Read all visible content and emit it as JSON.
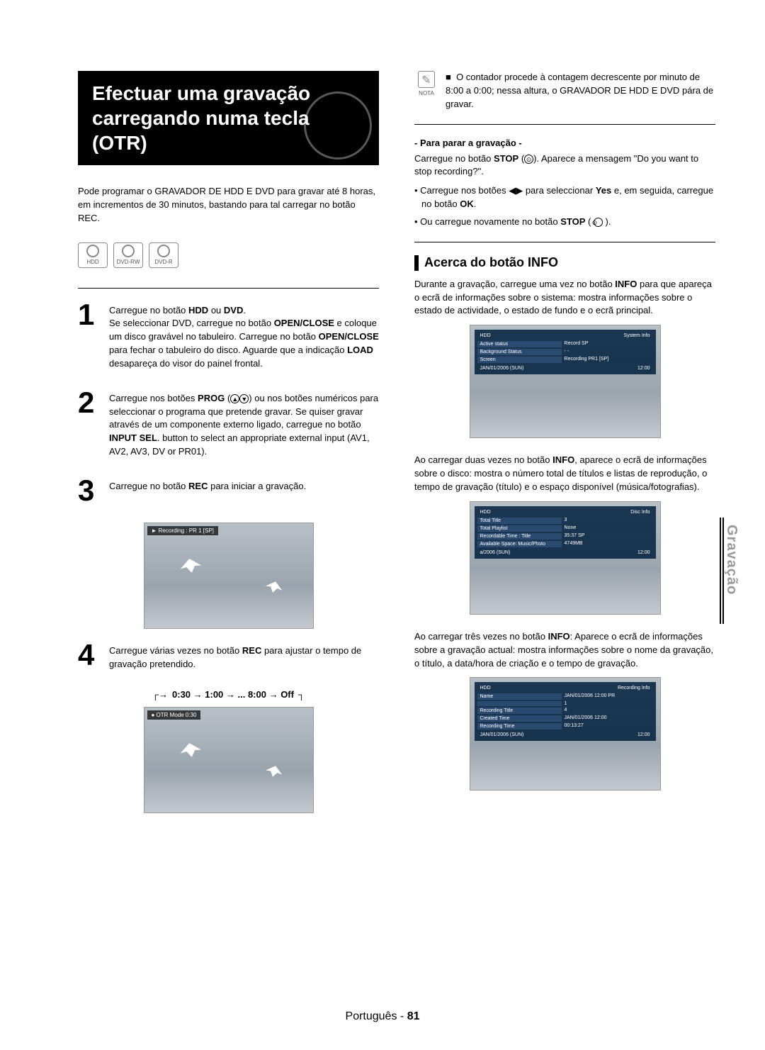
{
  "left": {
    "title_line1": "Efectuar uma gravação",
    "title_line2": "carregando numa tecla (OTR)",
    "intro": "Pode programar o GRAVADOR DE HDD E DVD para gravar até 8 horas, em incrementos de 30 minutos, bastando para tal carregar no botão REC.",
    "disc_labels": [
      "HDD",
      "DVD-RW",
      "DVD-R"
    ],
    "steps": {
      "s1": "Carregue no botão HDD ou DVD. Se seleccionar DVD, carregue no botão OPEN/CLOSE e coloque um disco gravável no tabuleiro. Carregue no botão OPEN/CLOSE para fechar o tabuleiro do disco. Aguarde que a indicação LOAD desapareça do visor do painel frontal.",
      "s2": "Carregue nos botões PROG (⊙⊙) ou nos botões numéricos para seleccionar o programa que pretende gravar. Se quiser gravar através de um componente externo ligado, carregue no botão INPUT SEL. button to select an appropriate external input (AV1, AV2, AV3, DV or PR01).",
      "s3": "Carregue no botão REC para iniciar a gravação.",
      "s3_screen_label": "► Recording : PR 1 [SP]",
      "s4": "Carregue várias vezes no botão REC para ajustar o tempo de gravação pretendido.",
      "cycle": "0:30 → 1:00 → ... 8:00 → Off",
      "s4_screen_label": "● OTR Mode     0:30"
    }
  },
  "right": {
    "note_label": "NOTA",
    "note_bullet": "O contador procede à contagem decrescente por minuto de 8:00 a 0:00; nessa altura, o GRAVADOR DE HDD E DVD pára de gravar.",
    "stop_h": "- Para parar a gravação -",
    "stop_p": "Carregue no botão STOP (⊙). Aparece a mensagem \"Do you want to stop recording?\".",
    "stop_b1": "Carregue nos botões ◀▶ para seleccionar Yes e, em seguida, carregue no botão OK.",
    "stop_b2": "Ou carregue novamente no botão STOP ( ⊙ ).",
    "info_h": "Acerca do botão INFO",
    "info_p1": "Durante a gravação, carregue uma vez no botão INFO para que apareça o ecrã de informações sobre o sistema: mostra informações sobre o estado de actividade, o estado de fundo e o ecrã principal.",
    "panel1": {
      "hdr_l": "HDD",
      "hdr_r": "System Info",
      "rows": [
        [
          "Active status",
          "Record SP"
        ],
        [
          "Background Status",
          "- -"
        ],
        [
          "Screen",
          "Recording PR1 [SP]"
        ]
      ],
      "ftr_l": "JAN/01/2006 (SUN)",
      "ftr_r": "12:00"
    },
    "info_p2": "Ao carregar duas vezes no botão INFO, aparece o ecrã de informações sobre o disco: mostra o número total de títulos e listas de reprodução, o tempo de gravação (título) e o espaço disponível (música/fotografias).",
    "panel2": {
      "hdr_l": "HDD",
      "hdr_r": "Disc Info",
      "rows": [
        [
          "Total Title",
          "3"
        ],
        [
          "Total Playlist",
          "None"
        ],
        [
          "Recordable Time : Title",
          "35:37 SP"
        ],
        [
          "Available Space: Music/Photo",
          "4749MB"
        ]
      ],
      "ftr_l": "a/2006 (SUN)",
      "ftr_r": "12:00"
    },
    "info_p3": "Ao carregar três vezes no botão INFO: Aparece o ecrã de informações sobre a gravação actual: mostra informações sobre o nome da gravação, o título, a data/hora de criação e o tempo de gravação.",
    "panel3": {
      "hdr_l": "HDD",
      "hdr_r": "Recording Info",
      "rows": [
        [
          "Name",
          "JAN/01/2006 12:00 PR"
        ],
        [
          " ",
          "1"
        ],
        [
          "Recording Title",
          "4"
        ],
        [
          "Created Time",
          "JAN/01/2006 12:00"
        ],
        [
          "Recording Time",
          "00:13:27"
        ]
      ],
      "ftr_l": "JAN/01/2006 (SUN)",
      "ftr_r": "12:00"
    }
  },
  "side_tab": "Gravação",
  "footer_lang": "Português -",
  "footer_page": "81"
}
